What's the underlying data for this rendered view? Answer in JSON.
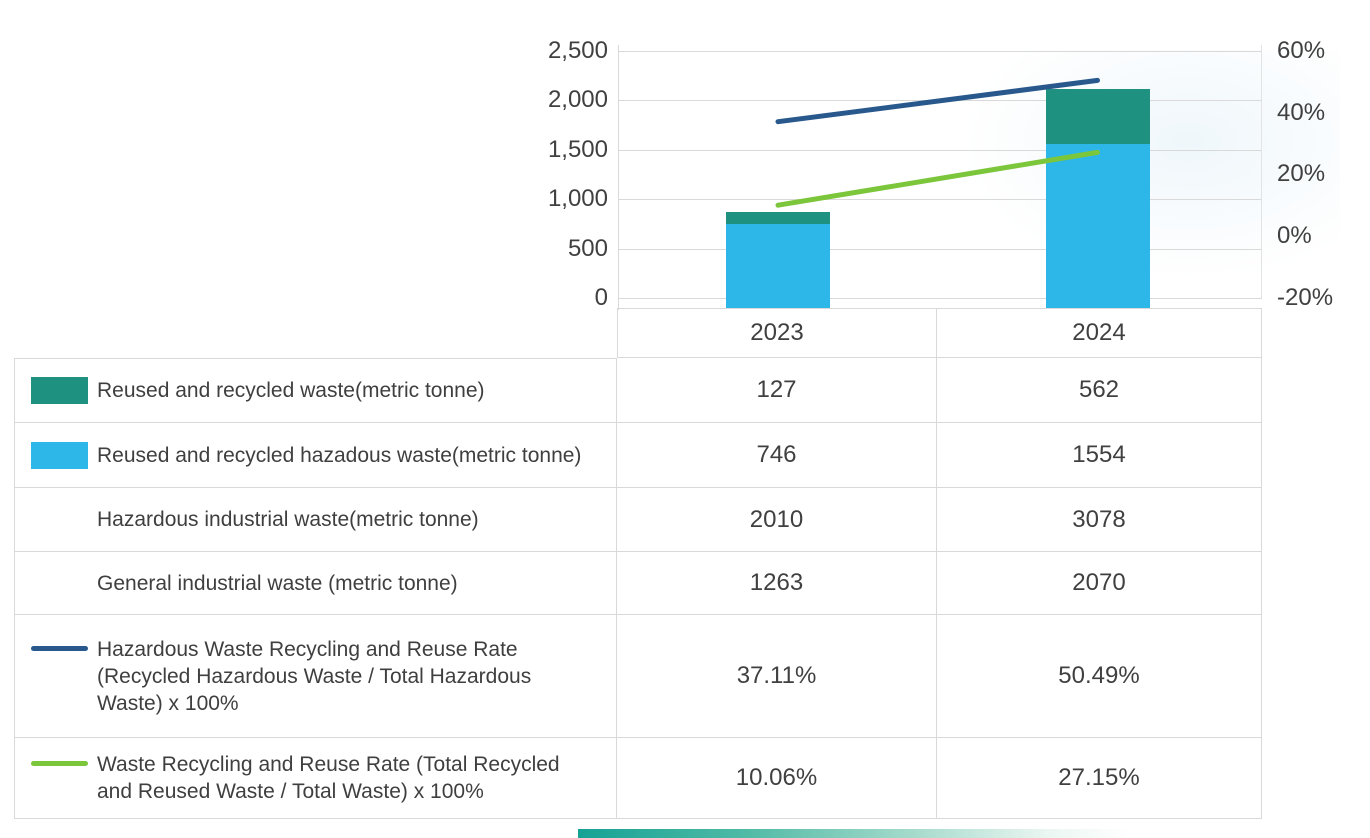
{
  "table": {
    "columns": [
      "2023",
      "2024"
    ],
    "rows": [
      {
        "swatch": "bar-teal",
        "label": "Reused and recycled waste(metric tonne)",
        "values": [
          "127",
          "562"
        ]
      },
      {
        "swatch": "bar-blue",
        "label": "Reused and recycled hazadous waste(metric tonne)",
        "values": [
          "746",
          "1554"
        ]
      },
      {
        "swatch": "none",
        "label": "Hazardous industrial waste(metric tonne)",
        "values": [
          "2010",
          "3078"
        ]
      },
      {
        "swatch": "none",
        "label": "General industrial waste (metric tonne)",
        "values": [
          "1263",
          "2070"
        ]
      },
      {
        "swatch": "line-blue",
        "label": "Hazardous Waste Recycling and Reuse Rate\n(Recycled Hazardous Waste / Total Hazardous\nWaste) x 100%",
        "values": [
          "37.11%",
          "50.49%"
        ]
      },
      {
        "swatch": "line-green",
        "label": "Waste Recycling and Reuse Rate (Total Recycled\nand Reused Waste / Total Waste) x 100%",
        "values": [
          "10.06%",
          "27.15%"
        ]
      }
    ]
  },
  "chart_data": {
    "type": "combo (stacked bar + line)",
    "categories": [
      "2023",
      "2024"
    ],
    "series": [
      {
        "name": "Reused and recycled waste(metric tonne)",
        "type": "bar",
        "stack": "waste",
        "color": "#1f9180",
        "values": [
          127,
          562
        ]
      },
      {
        "name": "Reused and recycled hazadous waste(metric tonne)",
        "type": "bar",
        "stack": "waste",
        "color": "#2cb7e8",
        "values": [
          746,
          1554
        ]
      },
      {
        "name": "Hazardous industrial waste(metric tonne)",
        "type": "table-only",
        "values": [
          2010,
          3078
        ]
      },
      {
        "name": "General industrial waste (metric tonne)",
        "type": "table-only",
        "values": [
          1263,
          2070
        ]
      },
      {
        "name": "Hazardous Waste Recycling and Reuse Rate (Recycled Hazardous Waste / Total Hazardous Waste) x 100%",
        "type": "line",
        "axis": "right",
        "color": "#28588c",
        "values": [
          37.11,
          50.49
        ]
      },
      {
        "name": "Waste Recycling and Reuse Rate (Total Recycled and Reused Waste / Total Waste) x 100%",
        "type": "line",
        "axis": "right",
        "color": "#7cc63b",
        "values": [
          10.06,
          27.15
        ]
      }
    ],
    "left_axis": {
      "min": 0,
      "max": 2500,
      "ticks": [
        0,
        500,
        1000,
        1500,
        2000,
        2500
      ],
      "tick_labels_top_down": [
        "2,500",
        "2,000",
        "1,500",
        "1,000",
        "500",
        "0"
      ]
    },
    "right_axis": {
      "min": -20,
      "max": 60,
      "ticks": [
        -20,
        0,
        20,
        40,
        60
      ],
      "format": "percent",
      "tick_labels_top_down": [
        "60%",
        "40%",
        "20%",
        "0%",
        "-20%"
      ]
    },
    "grid": true,
    "legend_position": "table-left-column",
    "title": ""
  }
}
